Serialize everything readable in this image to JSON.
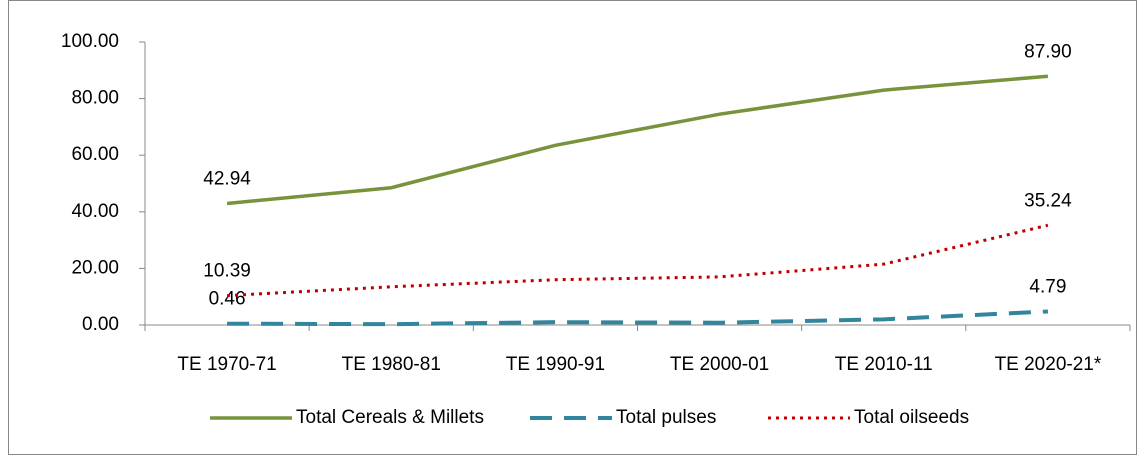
{
  "chart_data": {
    "type": "line",
    "categories": [
      "TE 1970-71",
      "TE 1980-81",
      "TE 1990-91",
      "TE 2000-01",
      "TE 2010-11",
      "TE 2020-21*"
    ],
    "series": [
      {
        "name": "Total Cereals & Millets",
        "color": "#77933c",
        "line_style": "solid",
        "values": [
          42.94,
          48.5,
          63.5,
          74.5,
          83.0,
          87.9
        ],
        "value_labels": [
          "42.94",
          null,
          null,
          null,
          null,
          "87.90"
        ]
      },
      {
        "name": "Total pulses",
        "color": "#31859c",
        "line_style": "dashed",
        "values": [
          0.46,
          0.3,
          1.0,
          0.8,
          2.0,
          4.79
        ],
        "value_labels": [
          "0.46",
          null,
          null,
          null,
          null,
          "4.79"
        ]
      },
      {
        "name": "Total oilseeds",
        "color": "#c00000",
        "line_style": "dotted",
        "values": [
          10.39,
          13.5,
          16.0,
          17.0,
          21.5,
          35.24
        ],
        "value_labels": [
          "10.39",
          null,
          null,
          null,
          null,
          "35.24"
        ]
      }
    ],
    "ylim": [
      0,
      100
    ],
    "yticks": [
      {
        "value": 0,
        "label": "0.00"
      },
      {
        "value": 20,
        "label": "20.00"
      },
      {
        "value": 40,
        "label": "40.00"
      },
      {
        "value": 60,
        "label": "60.00"
      },
      {
        "value": 80,
        "label": "80.00"
      },
      {
        "value": 100,
        "label": "100.00"
      }
    ],
    "legend": "bottom"
  }
}
